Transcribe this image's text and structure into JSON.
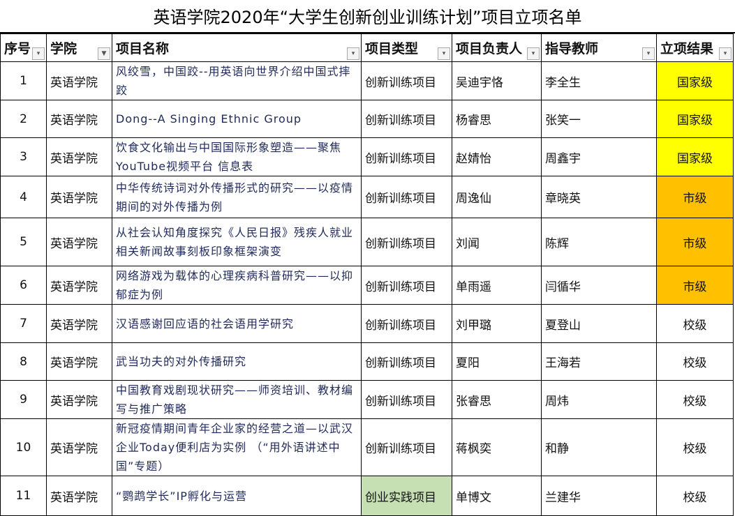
{
  "title": "英语学院2020年“大学生创新创业训练计划”项目立项名单",
  "headers": [
    "序号",
    "学院",
    "项目名称",
    "项目类型",
    "项目负责人",
    "指导教师",
    "立项结果"
  ],
  "colors": {
    "national": "#ffff00",
    "city": "#ffc000",
    "practice": "#c6e0b4"
  },
  "rows": [
    {
      "no": "1",
      "college": "英语学院",
      "name": "风绞雪，中国跤--用英语向世界介绍中国式摔跤",
      "type": "创新训练项目",
      "leader": "吴迪宇恪",
      "teacher": "李全生",
      "result": "国家级"
    },
    {
      "no": "2",
      "college": "英语学院",
      "name": "Dong--A Singing Ethnic Group",
      "type": "创新训练项目",
      "leader": "杨睿思",
      "teacher": "张笑一",
      "result": "国家级"
    },
    {
      "no": "3",
      "college": "英语学院",
      "name": "饮食文化输出与中国国际形象塑造——聚焦YouTube视频平台 信息表",
      "type": "创新训练项目",
      "leader": "赵婧怡",
      "teacher": "周鑫宇",
      "result": "国家级"
    },
    {
      "no": "4",
      "college": "英语学院",
      "name": "中华传统诗词对外传播形式的研究——以疫情期间的对外传播为例",
      "type": "创新训练项目",
      "leader": "周逸仙",
      "teacher": "章晓英",
      "result": "市级"
    },
    {
      "no": "5",
      "college": "英语学院",
      "name": "从社会认知角度探究《人民日报》残疾人就业相关新闻故事刻板印象框架演变",
      "type": "创新训练项目",
      "leader": "刘闻",
      "teacher": "陈辉",
      "result": "市级"
    },
    {
      "no": "6",
      "college": "英语学院",
      "name": "网络游戏为载体的心理疾病科普研究——以抑郁症为例",
      "type": "创新训练项目",
      "leader": "单雨遥",
      "teacher": "闫循华",
      "result": "市级"
    },
    {
      "no": "7",
      "college": "英语学院",
      "name": "汉语感谢回应语的社会语用学研究",
      "type": "创新训练项目",
      "leader": "刘甲璐",
      "teacher": "夏登山",
      "result": "校级"
    },
    {
      "no": "8",
      "college": "英语学院",
      "name": "武当功夫的对外传播研究",
      "type": "创新训练项目",
      "leader": "夏阳",
      "teacher": "王海若",
      "result": "校级"
    },
    {
      "no": "9",
      "college": "英语学院",
      "name": "中国教育戏剧现状研究——师资培训、教材编写与推广策略",
      "type": "创新训练项目",
      "leader": "张睿思",
      "teacher": "周炜",
      "result": "校级"
    },
    {
      "no": "10",
      "college": "英语学院",
      "name": "新冠疫情期间青年企业家的经营之道—以武汉企业Today便利店为实例 （“用外语讲述中国”专题）",
      "type": "创新训练项目",
      "leader": "蒋枫奕",
      "teacher": "和静",
      "result": "校级"
    },
    {
      "no": "11",
      "college": "英语学院",
      "name": "“鹦鹉学长”IP孵化与运营",
      "type": "创业实践项目",
      "leader": "单博文",
      "teacher": "兰建华",
      "result": "校级"
    }
  ]
}
